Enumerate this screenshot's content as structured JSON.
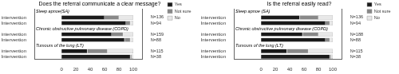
{
  "chart_data": [
    {
      "type": "bar",
      "orientation": "horizontal",
      "stacked": true,
      "title": "Does the referral communicate a clear message?",
      "groups": [
        {
          "label": "Sleep apnoe(SA)",
          "categories": [
            "No intervention",
            "Intervention"
          ],
          "n_labels": [
            "N=136",
            "N=94"
          ]
        },
        {
          "label": "Chronic obstructive pulmonary disease (COPD)",
          "categories": [
            "No intervention",
            "Intervention"
          ],
          "n_labels": [
            "N=159",
            "N=88"
          ]
        },
        {
          "label": "Tumours of the lung (LT)",
          "categories": [
            "No intervention",
            "Intervention"
          ],
          "n_labels": [
            "N=115",
            "N=38"
          ]
        }
      ],
      "series": [
        {
          "name": "Yes",
          "color": "#1a1a1a",
          "values": [
            60,
            90,
            70,
            88,
            36,
            96
          ]
        },
        {
          "name": "Not sure",
          "color": "#888888",
          "values": [
            20,
            6,
            16,
            8,
            28,
            2
          ]
        },
        {
          "name": "No",
          "color": "#e8e8e8",
          "values": [
            20,
            4,
            14,
            4,
            36,
            2
          ]
        }
      ],
      "xlim": [
        -38,
        113
      ],
      "xticks": [
        0,
        20,
        40,
        60,
        80,
        100
      ],
      "grid": false,
      "legend": "upper right"
    },
    {
      "type": "bar",
      "orientation": "horizontal",
      "stacked": true,
      "title": "Is the referral easily read?",
      "groups": [
        {
          "label": "Sleep apnoe (SA)",
          "categories": [
            "No intervention",
            "Intervention"
          ],
          "n_labels": [
            "N=136",
            "N=94"
          ]
        },
        {
          "label": "Chronic obstructive pulmonary disease (COPD)",
          "categories": [
            "No intervention",
            "Intervention"
          ],
          "n_labels": [
            "N=188",
            "N=88"
          ]
        },
        {
          "label": "Tumours of the lung (LT)",
          "categories": [
            "No intervention",
            "Intervention"
          ],
          "n_labels": [
            "N=115",
            "N=38"
          ]
        }
      ],
      "series": [
        {
          "name": "Yes",
          "color": "#1a1a1a",
          "values": [
            54,
            90,
            58,
            90,
            36,
            96
          ]
        },
        {
          "name": "Not sure",
          "color": "#888888",
          "values": [
            26,
            6,
            22,
            6,
            30,
            2
          ]
        },
        {
          "name": "No",
          "color": "#e8e8e8",
          "values": [
            20,
            4,
            20,
            4,
            34,
            2
          ]
        }
      ],
      "xlim": [
        -38,
        113
      ],
      "xticks": [
        0,
        20,
        40,
        60,
        80,
        100
      ],
      "grid": false,
      "legend": "upper right"
    }
  ]
}
